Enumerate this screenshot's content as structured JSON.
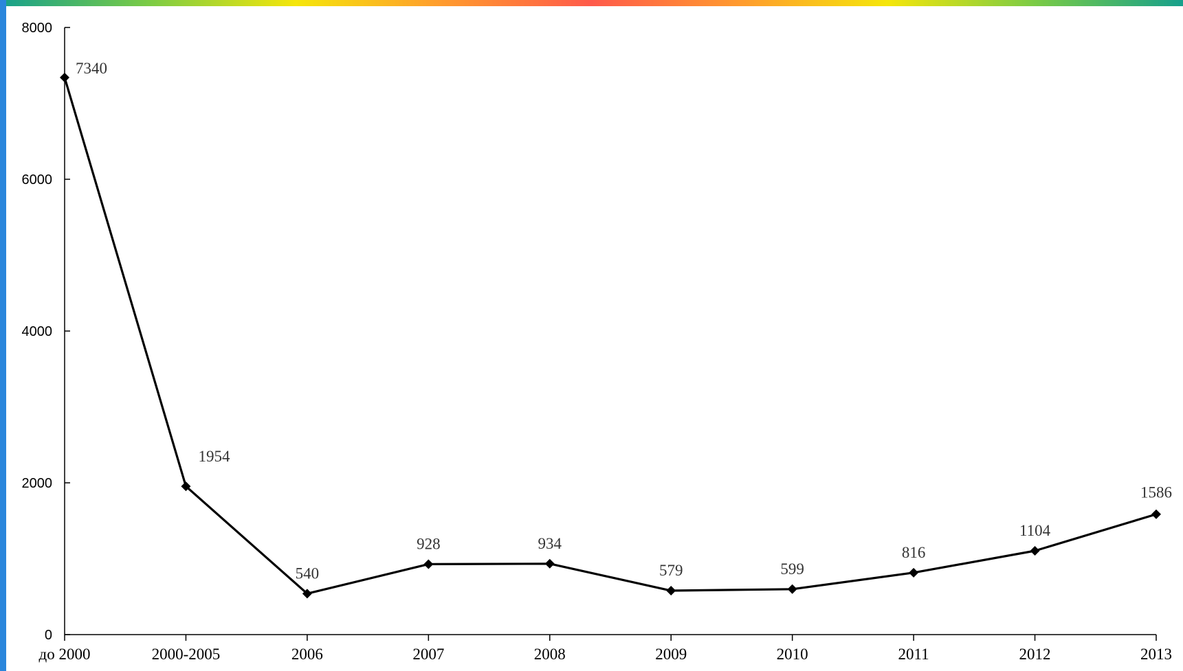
{
  "colors": {
    "left_bar": "#2a86dc",
    "stripe": [
      "#16a08c",
      "#7acb45",
      "#f5e60a",
      "#ff9a2e",
      "#ff5a4a",
      "#ff9a2e",
      "#f5e60a",
      "#7acb45",
      "#16a08c"
    ],
    "line": "#000000",
    "marker": "#000000",
    "axis": "#000000",
    "data_label": "#333333"
  },
  "chart_data": {
    "type": "line",
    "categories": [
      "до 2000",
      "2000-2005",
      "2006",
      "2007",
      "2008",
      "2009",
      "2010",
      "2011",
      "2012",
      "2013"
    ],
    "series": [
      {
        "values": [
          7340,
          1954,
          540,
          928,
          934,
          579,
          599,
          816,
          1104,
          1586
        ],
        "data_labels": [
          "7340",
          "1954",
          "540",
          "928",
          "934",
          "579",
          "599",
          "816",
          "1104",
          "1586"
        ],
        "marker": "diamond"
      }
    ],
    "title": "",
    "xlabel": "",
    "ylabel": "",
    "ylim": [
      0,
      8000
    ],
    "yticks": [
      0,
      2000,
      4000,
      6000,
      8000
    ],
    "ytick_labels": [
      "0",
      "2000",
      "4000",
      "6000",
      "8000"
    ],
    "grid": false,
    "legend": "none"
  }
}
